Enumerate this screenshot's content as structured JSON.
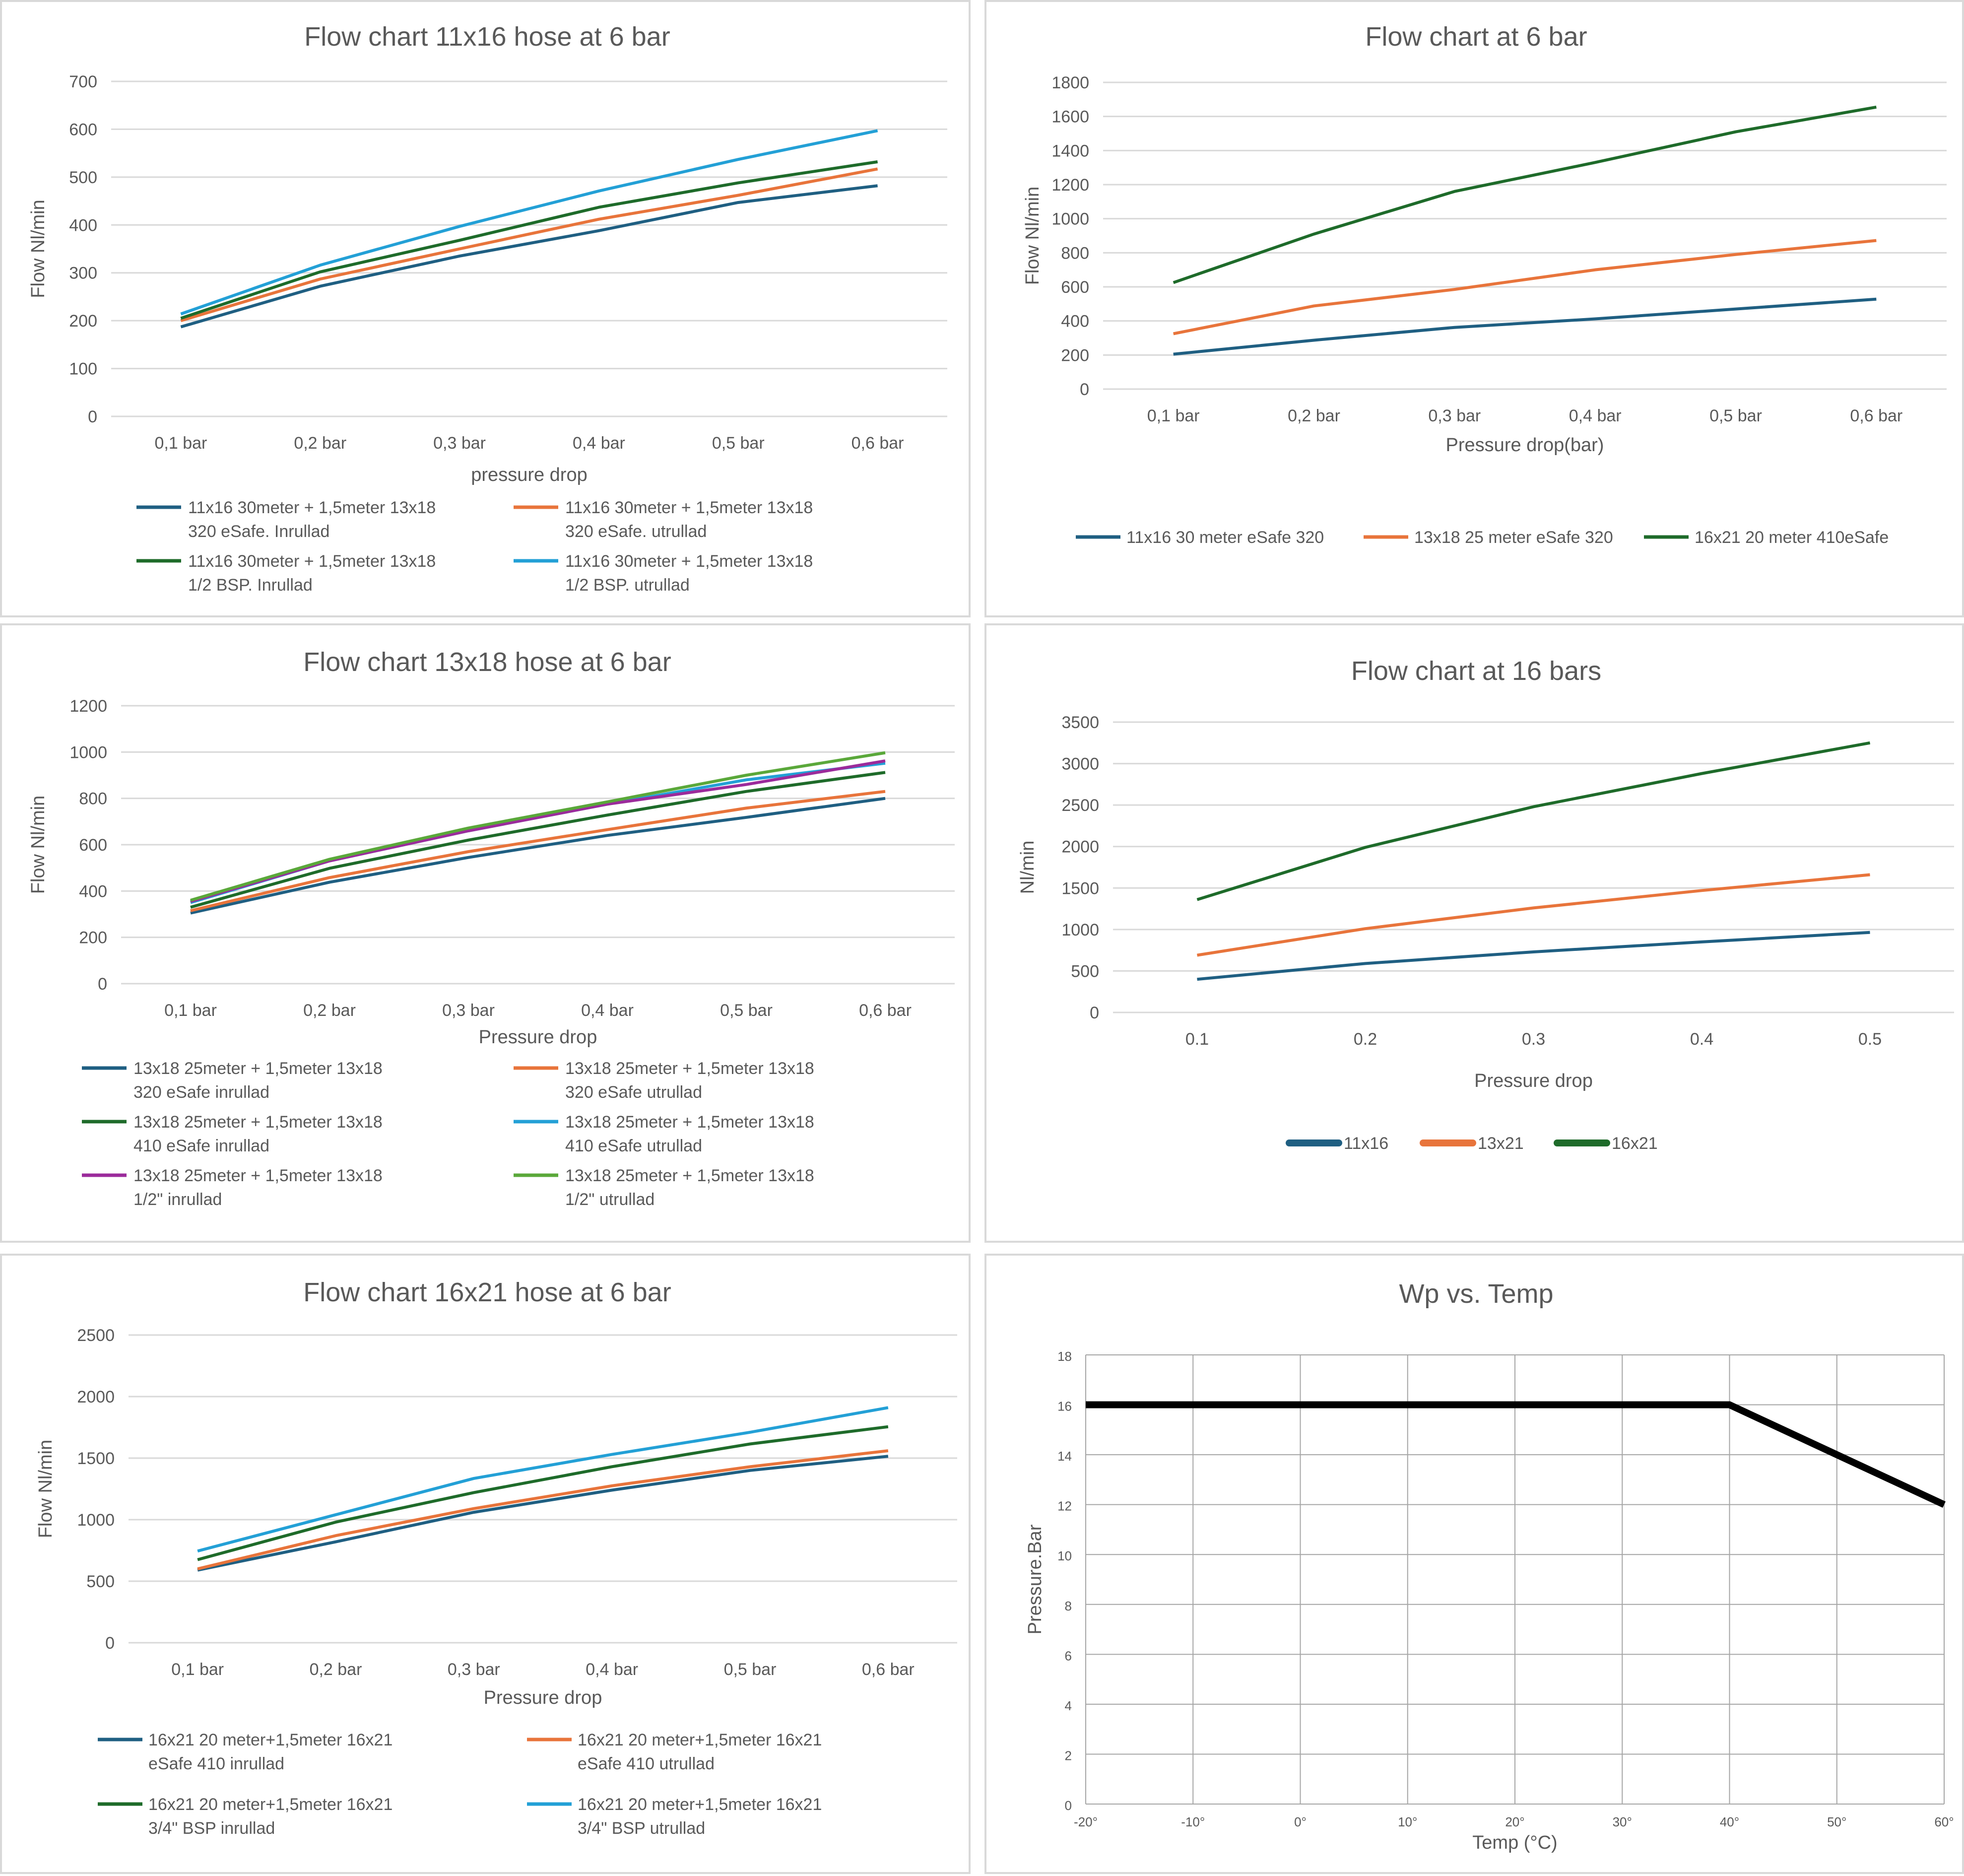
{
  "colors": {
    "dark_blue": "#1f5f82",
    "orange": "#e8743b",
    "dark_green": "#1e6b2a",
    "light_blue": "#23a0d6",
    "purple": "#9b2b9b",
    "light_green": "#5aa83a",
    "black": "#000000",
    "grid": "#d9d9d9",
    "text": "#595959"
  },
  "chart_data": [
    {
      "id": "p1",
      "type": "line",
      "title": "Flow chart 11x16 hose at 6 bar",
      "xlabel": "pressure drop",
      "ylabel": "Flow Nl/min",
      "categories": [
        "0,1 bar",
        "0,2 bar",
        "0,3 bar",
        "0,4 bar",
        "0,5 bar",
        "0,6 bar"
      ],
      "ylim": [
        0,
        700
      ],
      "yticks": [
        0,
        100,
        200,
        300,
        400,
        500,
        600,
        700
      ],
      "grid": true,
      "legend_position": "bottom",
      "series": [
        {
          "name": "11x16 30meter + 1,5meter 13x18|320 eSafe. Inrullad",
          "color": "dark_blue",
          "values": [
            187,
            272,
            335,
            388,
            447,
            482
          ]
        },
        {
          "name": "11x16 30meter + 1,5meter 13x18|320 eSafe. utrullad",
          "color": "orange",
          "values": [
            200,
            287,
            350,
            412,
            462,
            517
          ]
        },
        {
          "name": "11x16 30meter + 1,5meter 13x18|1/2 BSP. Inrullad",
          "color": "dark_green",
          "values": [
            205,
            302,
            368,
            437,
            488,
            532
          ]
        },
        {
          "name": "11x16 30meter + 1,5meter 13x18|1/2 BSP. utrullad",
          "color": "light_blue",
          "values": [
            214,
            316,
            397,
            471,
            537,
            597
          ]
        }
      ]
    },
    {
      "id": "p2",
      "type": "line",
      "title": "Flow chart at 6 bar",
      "xlabel": "Pressure drop(bar)",
      "ylabel": "Flow Nl/min",
      "categories": [
        "0,1 bar",
        "0,2 bar",
        "0,3 bar",
        "0,4 bar",
        "0,5 bar",
        "0,6 bar"
      ],
      "ylim": [
        0,
        1800
      ],
      "yticks": [
        0,
        200,
        400,
        600,
        800,
        1000,
        1200,
        1400,
        1600,
        1800
      ],
      "grid": true,
      "legend_position": "bottom",
      "series": [
        {
          "name": "11x16 30 meter eSafe 320",
          "color": "dark_blue",
          "values": [
            205,
            287,
            362,
            412,
            470,
            528
          ]
        },
        {
          "name": "13x18 25 meter eSafe 320",
          "color": "orange",
          "values": [
            325,
            488,
            585,
            700,
            790,
            872
          ]
        },
        {
          "name": "16x21 20 meter 410eSafe",
          "color": "dark_green",
          "values": [
            625,
            910,
            1160,
            1330,
            1510,
            1655
          ]
        }
      ]
    },
    {
      "id": "p3",
      "type": "line",
      "title": "Flow chart 13x18 hose at 6 bar",
      "xlabel": "Pressure drop",
      "ylabel": "Flow Nl/min",
      "categories": [
        "0,1 bar",
        "0,2 bar",
        "0,3 bar",
        "0,4 bar",
        "0,5 bar",
        "0,6 bar"
      ],
      "ylim": [
        0,
        1200
      ],
      "yticks": [
        0,
        200,
        400,
        600,
        800,
        1000,
        1200
      ],
      "grid": true,
      "legend_position": "bottom",
      "series": [
        {
          "name": "13x18 25meter + 1,5meter 13x18|320 eSafe inrullad",
          "color": "dark_blue",
          "values": [
            305,
            438,
            545,
            640,
            718,
            800
          ]
        },
        {
          "name": "13x18 25meter + 1,5meter 13x18|320 eSafe utrullad",
          "color": "orange",
          "values": [
            315,
            458,
            570,
            665,
            758,
            830
          ]
        },
        {
          "name": "13x18 25meter + 1,5meter 13x18|410 eSafe inrullad",
          "color": "dark_green",
          "values": [
            330,
            498,
            620,
            728,
            830,
            912
          ]
        },
        {
          "name": "13x18 25meter + 1,5meter 13x18|410 eSafe utrullad",
          "color": "light_blue",
          "values": [
            350,
            530,
            660,
            775,
            880,
            952
          ]
        },
        {
          "name": "13x18 25meter + 1,5meter 13x18|1/2\" inrullad",
          "color": "purple",
          "values": [
            355,
            530,
            660,
            775,
            860,
            962
          ]
        },
        {
          "name": "13x18 25meter + 1,5meter 13x18|1/2\" utrullad",
          "color": "light_green",
          "values": [
            360,
            537,
            672,
            785,
            900,
            997
          ]
        }
      ]
    },
    {
      "id": "p4",
      "type": "line",
      "title": "Flow chart at 16 bars",
      "xlabel": "Pressure drop",
      "ylabel": "Nl/min",
      "categories": [
        "0.1",
        "0.2",
        "0.3",
        "0.4",
        "0.5"
      ],
      "ylim": [
        0,
        3500
      ],
      "yticks": [
        0,
        500,
        1000,
        1500,
        2000,
        2500,
        3000,
        3500
      ],
      "grid": true,
      "legend_position": "bottom",
      "series": [
        {
          "name": "11x16",
          "color": "dark_blue",
          "values": [
            400,
            590,
            730,
            850,
            965
          ]
        },
        {
          "name": "13x21",
          "color": "orange",
          "values": [
            690,
            1010,
            1260,
            1470,
            1660
          ]
        },
        {
          "name": "16x21",
          "color": "dark_green",
          "values": [
            1360,
            1990,
            2480,
            2880,
            3250
          ]
        }
      ]
    },
    {
      "id": "p5",
      "type": "line",
      "title": "Flow chart 16x21 hose at 6 bar",
      "xlabel": "Pressure drop",
      "ylabel": "Flow Nl/min",
      "categories": [
        "0,1 bar",
        "0,2 bar",
        "0,3 bar",
        "0,4 bar",
        "0,5 bar",
        "0,6 bar"
      ],
      "ylim": [
        0,
        2500
      ],
      "yticks": [
        0,
        500,
        1000,
        1500,
        2000,
        2500
      ],
      "grid": true,
      "legend_position": "bottom",
      "series": [
        {
          "name": "16x21 20 meter+1,5meter 16x21|eSafe 410 inrullad",
          "color": "dark_blue",
          "values": [
            590,
            820,
            1060,
            1240,
            1400,
            1515
          ]
        },
        {
          "name": "16x21 20 meter+1,5meter 16x21|eSafe 410 utrullad",
          "color": "orange",
          "values": [
            600,
            870,
            1090,
            1275,
            1430,
            1560
          ]
        },
        {
          "name": "16x21 20 meter+1,5meter 16x21|3/4\" BSP inrullad",
          "color": "dark_green",
          "values": [
            675,
            980,
            1220,
            1430,
            1615,
            1755
          ]
        },
        {
          "name": "16x21 20 meter+1,5meter 16x21|3/4\" BSP utrullad",
          "color": "light_blue",
          "values": [
            745,
            1040,
            1335,
            1530,
            1710,
            1910
          ]
        }
      ]
    },
    {
      "id": "p6",
      "type": "line",
      "title": "Wp vs. Temp",
      "xlabel": "Temp (°C)",
      "ylabel": "Pressure.Bar",
      "x": [
        -20,
        40,
        50,
        60
      ],
      "xticks": [
        "-20°",
        "-10°",
        "0°",
        "10°",
        "20°",
        "30°",
        "40°",
        "50°",
        "60°"
      ],
      "xlim": [
        -20,
        60
      ],
      "ylim": [
        0,
        18
      ],
      "yticks": [
        0,
        2,
        4,
        6,
        8,
        10,
        12,
        14,
        16,
        18
      ],
      "grid": true,
      "legend_position": "none",
      "series": [
        {
          "name": "Wp",
          "color": "black",
          "values": [
            16,
            16,
            14,
            12
          ]
        }
      ]
    }
  ]
}
